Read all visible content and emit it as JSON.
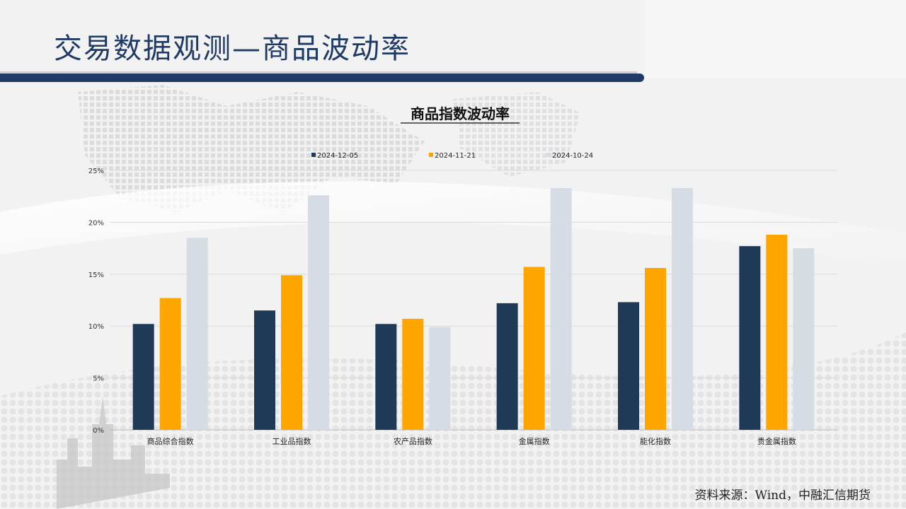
{
  "slide": {
    "title": "交易数据观测—商品波动率",
    "source_note": "资料来源：Wind，中融汇信期货"
  },
  "colors": {
    "title": "#1f3a64",
    "series": [
      "#1f3a56",
      "#ffa500",
      "#d6dce4"
    ]
  },
  "chart_data": {
    "type": "bar",
    "title": "商品指数波动率",
    "xlabel": "",
    "ylabel": "",
    "categories": [
      "商品综合指数",
      "工业品指数",
      "农产品指数",
      "金属指数",
      "能化指数",
      "贵金属指数"
    ],
    "series": [
      {
        "name": "2024-12-05",
        "values": [
          10.2,
          11.5,
          10.2,
          12.2,
          12.3,
          17.7
        ]
      },
      {
        "name": "2024-11-21",
        "values": [
          12.7,
          14.9,
          10.7,
          15.7,
          15.6,
          18.8
        ]
      },
      {
        "name": "2024-10-24",
        "values": [
          18.5,
          22.6,
          9.9,
          23.3,
          23.3,
          17.5
        ]
      }
    ],
    "ylim": [
      0,
      25
    ],
    "yticks": [
      "0%",
      "5%",
      "10%",
      "15%",
      "20%",
      "25%"
    ],
    "grid": true,
    "legend_position": "top"
  }
}
